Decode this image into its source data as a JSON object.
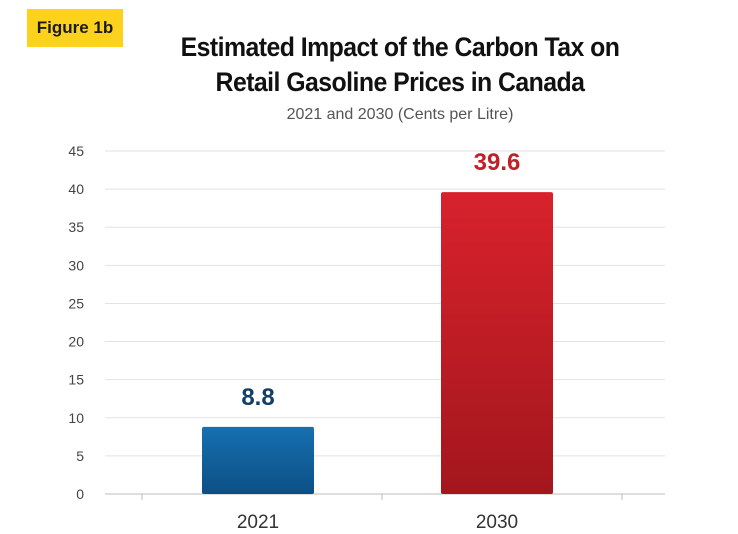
{
  "badge": "Figure 1b",
  "title_line1": "Estimated Impact of the Carbon Tax on",
  "title_line2": "Retail Gasoline Prices in Canada",
  "subtitle": "2021 and 2030 (Cents per Litre)",
  "colors": {
    "badge": "#fcd21c",
    "bar_2021_top": "#1670b0",
    "bar_2021_bottom": "#0d4f85",
    "bar_2030_top": "#d8222c",
    "bar_2030_bottom": "#a3161d",
    "label_2021": "#123f66",
    "label_2030": "#c0202a"
  },
  "chart_data": {
    "type": "bar",
    "title": "Estimated Impact of the Carbon Tax on Retail Gasoline Prices in Canada",
    "subtitle": "2021 and 2030 (Cents per Litre)",
    "categories": [
      "2021",
      "2030"
    ],
    "values": [
      8.8,
      39.6
    ],
    "data_labels": [
      "8.8",
      "39.6"
    ],
    "xlabel": "",
    "ylabel": "",
    "ylim": [
      0,
      45
    ],
    "yticks": [
      0,
      5,
      10,
      15,
      20,
      25,
      30,
      35,
      40,
      45
    ],
    "grid": true,
    "legend": "none"
  }
}
